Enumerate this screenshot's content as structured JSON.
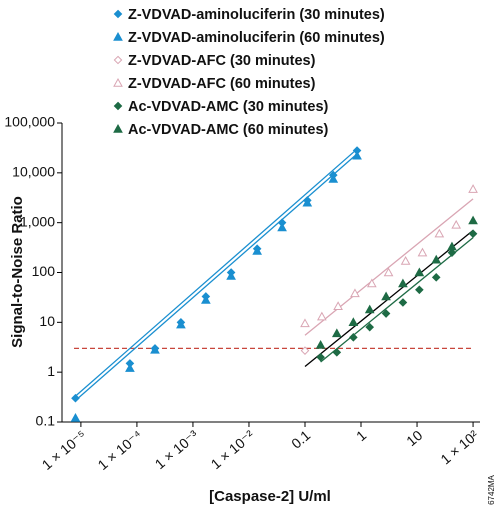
{
  "chart_data": {
    "type": "scatter",
    "x_label": "[Caspase-2] U/ml",
    "y_label": "Signal-to-Noise Ratio",
    "figure_id": "6742MA",
    "log_x": true,
    "log_y": true,
    "xlim": [
      4.6e-06,
      133
    ],
    "ylim": [
      0.1,
      100000
    ],
    "xticks": [
      {
        "value": 1e-05,
        "label": "1 × 10⁻⁵"
      },
      {
        "value": 0.0001,
        "label": "1 × 10⁻⁴"
      },
      {
        "value": 0.001,
        "label": "1 × 10⁻³"
      },
      {
        "value": 0.01,
        "label": "1 × 10⁻²"
      },
      0.1,
      1,
      10,
      {
        "value": 100,
        "label": "1 × 10²"
      }
    ],
    "yticks": [
      0.1,
      1,
      10,
      100,
      {
        "value": 1000,
        "label": "1,000"
      },
      {
        "value": 10000,
        "label": "10,000"
      },
      {
        "value": 100000,
        "label": "100,000"
      }
    ],
    "threshold": {
      "value": 3,
      "color": "#c8463c"
    },
    "series": [
      {
        "name": "Z-VDVAD-aminoluciferin (30 minutes)",
        "color": "#1a8fd0",
        "marker": "diamond",
        "filled": true,
        "x": [
          8e-06,
          7.5e-05,
          0.00021,
          0.00061,
          0.0017,
          0.0048,
          0.014,
          0.039,
          0.11,
          0.32,
          0.85
        ],
        "values": [
          0.3,
          1.5,
          3,
          10,
          33,
          100,
          300,
          1000,
          2800,
          9000,
          28000
        ]
      },
      {
        "name": "Z-VDVAD-aminoluciferin (60 minutes)",
        "color": "#1a8fd0",
        "marker": "triangle",
        "filled": true,
        "x": [
          8e-06,
          7.5e-05,
          0.00021,
          0.00061,
          0.0017,
          0.0048,
          0.014,
          0.039,
          0.11,
          0.32,
          0.85
        ],
        "values": [
          0.12,
          1.2,
          2.8,
          9,
          28,
          85,
          270,
          800,
          2500,
          7500,
          22000
        ]
      },
      {
        "name": "Z-VDVAD-AFC (30 minutes)",
        "color": "#d9a5b3",
        "marker": "diamond",
        "filled": false,
        "x": [
          0.1
        ],
        "values": [
          2.7
        ]
      },
      {
        "name": "Z-VDVAD-AFC (60 minutes)",
        "color": "#d9a5b3",
        "marker": "triangle",
        "filled": false,
        "x": [
          0.1,
          0.2,
          0.39,
          0.78,
          1.56,
          3.1,
          6.25,
          12.5,
          25,
          50,
          100
        ],
        "values": [
          9.5,
          13,
          21,
          38,
          60,
          100,
          170,
          250,
          600,
          900,
          4700
        ]
      },
      {
        "name": "Ac-VDVAD-AMC (30 minutes)",
        "color": "#1e6b45",
        "marker": "diamond",
        "filled": true,
        "x": [
          0.19,
          0.37,
          0.73,
          1.43,
          2.8,
          5.6,
          11,
          22,
          42,
          100
        ],
        "values": [
          2,
          2.5,
          5,
          8,
          15,
          25,
          45,
          80,
          250,
          600
        ]
      },
      {
        "name": "Ac-VDVAD-AMC (60 minutes)",
        "color": "#1e6b45",
        "marker": "triangle",
        "filled": true,
        "x": [
          0.19,
          0.37,
          0.73,
          1.43,
          2.8,
          5.6,
          11,
          22,
          42,
          100
        ],
        "values": [
          3.5,
          6,
          10,
          18,
          33,
          60,
          100,
          180,
          330,
          1100
        ]
      }
    ],
    "fits": [
      {
        "color": "#1a8fd0",
        "x": [
          8e-06,
          0.85
        ],
        "values": [
          0.33,
          30000
        ]
      },
      {
        "color": "#1a8fd0",
        "x": [
          8e-06,
          0.85
        ],
        "values": [
          0.27,
          24000
        ]
      },
      {
        "color": "#d9a5b3",
        "x": [
          0.1,
          100
        ],
        "values": [
          5.5,
          3000
        ]
      },
      {
        "color": "#000000",
        "x": [
          0.1,
          100
        ],
        "values": [
          1.3,
          700
        ]
      },
      {
        "color": "#1e6b45",
        "x": [
          0.19,
          100
        ],
        "values": [
          1.6,
          500
        ]
      }
    ]
  }
}
